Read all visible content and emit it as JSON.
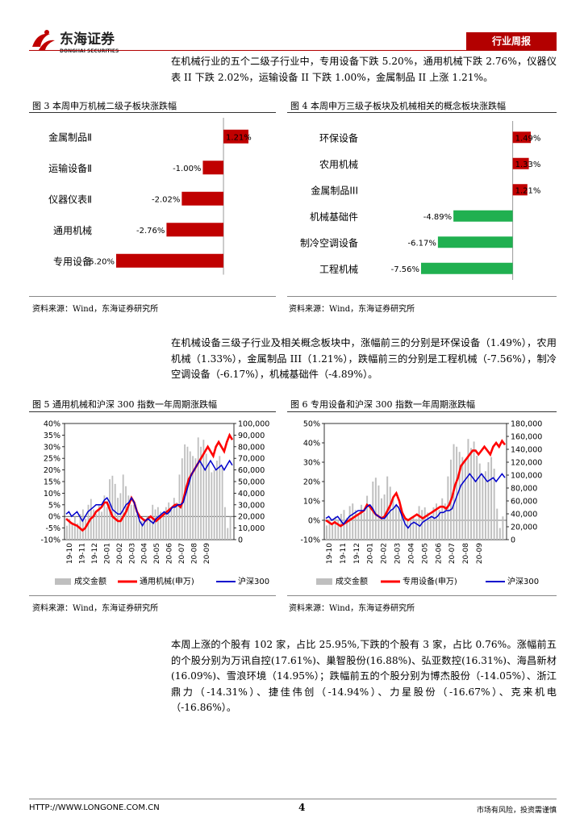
{
  "header": {
    "logo_cn": "东海证券",
    "logo_en": "DONGHAI SECURITIES",
    "badge": "行业周报"
  },
  "para1": "在机械行业的五个二级子行业中，专用设备下跌 5.20%，通用机械下跌 2.76%，仪器仪表 II 下跌 2.02%，运输设备 II 下跌 1.00%，金属制品 II 上涨 1.21%。",
  "fig3": {
    "caption": "图 3   本周申万机械二级子板块涨跌幅",
    "source": "资料来源：Wind，东海证券研究所"
  },
  "fig4": {
    "caption": "图 4   本周申万三级子板块及机械相关的概念板块涨跌幅",
    "source": "资料来源：Wind，东海证券研究所"
  },
  "para2": "在机械设备三级子行业及相关概念板块中，涨幅前三的分别是环保设备（1.49%），农用机械（1.33%），金属制品 III（1.21%），跌幅前三的分别是工程机械（-7.56%），制冷空调设备（-6.17%），机械基础件（-4.89%）。",
  "fig5": {
    "caption": "图 5   通用机械和沪深 300 指数一年周期涨跌幅",
    "source": "资料来源：Wind，东海证券研究所"
  },
  "fig6": {
    "caption": "图 6   专用设备和沪深 300 指数一年周期涨跌幅",
    "source": "资料来源：Wind，东海证券研究所"
  },
  "para3": "本周上涨的个股有 102 家，占比 25.95%,下跌的个股有 3 家，占比 0.76%。涨幅前五的个股分别为万讯自控(17.61%)、巢智股份(16.88%)、弘亚数控(16.31%)、海昌新材(16.09%)、雪浪环境（14.95%）；跌幅前五的个股分别为博杰股份（-14.05%）、浙江鼎力（-14.31%）、捷佳伟创（-14.94%）、力星股份（-16.67%）、克来机电（-16.86%）。",
  "footer": {
    "url": "HTTP://WWW.LONGONE.COM.CN",
    "page": "4",
    "note": "市场有风险，投资需谨慎"
  },
  "chart_data": [
    {
      "type": "bar",
      "orientation": "horizontal",
      "categories": [
        "金属制品Ⅱ",
        "运输设备Ⅱ",
        "仪器仪表Ⅱ",
        "通用机械",
        "专用设备"
      ],
      "values": [
        1.21,
        -1.0,
        -2.02,
        -2.76,
        -5.2
      ],
      "labels": [
        "1.21%",
        "-1.00%",
        "-2.02%",
        "-2.76%",
        "-5.20%"
      ],
      "color": "#c00000"
    },
    {
      "type": "bar",
      "orientation": "horizontal",
      "categories": [
        "环保设备",
        "农用机械",
        "金属制品III",
        "机械基础件",
        "制冷空调设备",
        "工程机械"
      ],
      "values": [
        1.49,
        1.33,
        1.21,
        -4.89,
        -6.17,
        -7.56
      ],
      "labels": [
        "1.49%",
        "1.33%",
        "1.21%",
        "-4.89%",
        "-6.17%",
        "-7.56%"
      ],
      "pos_color": "#c00000",
      "neg_color": "#20b050"
    },
    {
      "type": "line",
      "x_ticks": [
        "19-10",
        "19-11",
        "19-12",
        "20-01",
        "20-02",
        "20-03",
        "20-04",
        "20-05",
        "20-06",
        "20-07",
        "20-08",
        "20-09"
      ],
      "y_left": {
        "ticks": [
          "40%",
          "35%",
          "30%",
          "25%",
          "20%",
          "15%",
          "10%",
          "5%",
          "0%",
          "-5%",
          "-10%"
        ],
        "range": [
          -10,
          40
        ]
      },
      "y_right": {
        "ticks": [
          "100,000",
          "90,000",
          "80,000",
          "70,000",
          "60,000",
          "50,000",
          "40,000",
          "30,000",
          "20,000",
          "10,000",
          "0"
        ],
        "range": [
          0,
          100000
        ]
      },
      "bar_series": {
        "name": "成交金额",
        "color": "#bfbfbf",
        "values": [
          12000,
          18000,
          15000,
          20000,
          14000,
          22000,
          26000,
          18000,
          30000,
          35000,
          26000,
          22000,
          30000,
          24000,
          38000,
          28000,
          52000,
          55000,
          48000,
          36000,
          40000,
          56000,
          46000,
          38000,
          30000,
          30000,
          22000,
          20000,
          16000,
          18000,
          20000,
          18000,
          30000,
          26000,
          28000,
          24000,
          20000,
          28000,
          32000,
          26000,
          36000,
          32000,
          56000,
          70000,
          82000,
          80000,
          76000,
          72000,
          70000,
          88000,
          80000,
          86000,
          74000,
          66000,
          58000,
          60000,
          68000,
          72000,
          62000,
          28000,
          10000,
          20000
        ]
      },
      "series": [
        {
          "name": "通用机械(申万)",
          "color": "#ff0000",
          "values": [
            -1,
            -2,
            -3,
            -3.5,
            -4,
            -5,
            -6,
            -5,
            -3,
            -1,
            0,
            2,
            3,
            4,
            6,
            6,
            3,
            0,
            -1,
            -2,
            -2,
            0,
            2,
            5,
            8,
            6,
            2,
            0,
            -1,
            -2,
            -1,
            0,
            -1,
            -2,
            -1,
            0,
            1,
            2,
            3,
            4,
            5,
            5,
            4,
            7,
            12,
            16,
            18,
            20,
            22,
            24,
            26,
            28,
            30,
            28,
            26,
            30,
            32,
            30,
            28,
            32,
            35,
            33
          ]
        },
        {
          "name": "沪深300",
          "color": "#0000cc",
          "values": [
            1,
            2,
            0,
            1,
            2,
            0,
            -2,
            0,
            2,
            3,
            4,
            5,
            5,
            5,
            7,
            8,
            6,
            3,
            2,
            1,
            1,
            3,
            5,
            6,
            8,
            6,
            2,
            -2,
            -4,
            -2,
            -1,
            -2,
            -3,
            -1,
            0,
            1,
            2,
            1,
            2,
            4,
            4,
            5,
            5,
            6,
            10,
            14,
            18,
            20,
            22,
            24,
            22,
            20,
            22,
            24,
            22,
            20,
            21,
            22,
            20,
            22,
            24,
            22
          ]
        }
      ]
    },
    {
      "type": "line",
      "x_ticks": [
        "19-10",
        "19-11",
        "19-12",
        "20-01",
        "20-02",
        "20-03",
        "20-04",
        "20-05",
        "20-06",
        "20-07",
        "20-08",
        "20-09"
      ],
      "y_left": {
        "ticks": [
          "50%",
          "40%",
          "30%",
          "20%",
          "10%",
          "0%",
          "-10%"
        ],
        "range": [
          -10,
          50
        ]
      },
      "y_right": {
        "ticks": [
          "180,000",
          "160,000",
          "140,000",
          "120,000",
          "100,000",
          "80,000",
          "60,000",
          "40,000",
          "20,000",
          "0"
        ],
        "range": [
          0,
          180000
        ]
      },
      "bar_series": {
        "name": "成交金额",
        "color": "#bfbfbf",
        "values": [
          22000,
          30000,
          26000,
          36000,
          30000,
          40000,
          46000,
          34000,
          52000,
          56000,
          46000,
          40000,
          54000,
          42000,
          68000,
          52000,
          90000,
          96000,
          84000,
          64000,
          70000,
          98000,
          82000,
          66000,
          52000,
          52000,
          40000,
          36000,
          30000,
          34000,
          36000,
          32000,
          52000,
          46000,
          50000,
          42000,
          36000,
          50000,
          56000,
          46000,
          64000,
          56000,
          98000,
          124000,
          148000,
          144000,
          136000,
          128000,
          124000,
          156000,
          142000,
          152000,
          130000,
          118000,
          102000,
          106000,
          120000,
          128000,
          110000,
          48000,
          18000,
          36000
        ]
      },
      "series": [
        {
          "name": "专用设备(申万)",
          "color": "#ff0000",
          "values": [
            0,
            -1,
            -2,
            -1,
            -2,
            -3,
            -2,
            -1,
            0,
            1,
            2,
            3,
            4,
            5,
            8,
            7,
            5,
            3,
            2,
            1,
            2,
            5,
            8,
            12,
            14,
            10,
            4,
            1,
            0,
            1,
            2,
            3,
            2,
            1,
            2,
            3,
            4,
            5,
            6,
            7,
            7,
            6,
            8,
            12,
            18,
            22,
            28,
            30,
            32,
            34,
            36,
            36,
            34,
            36,
            38,
            36,
            34,
            38,
            40,
            38,
            41,
            39
          ]
        },
        {
          "name": "沪深300",
          "color": "#0000cc",
          "values": [
            1,
            2,
            0,
            1,
            2,
            0,
            -2,
            0,
            2,
            3,
            4,
            5,
            5,
            5,
            7,
            8,
            6,
            3,
            2,
            1,
            1,
            3,
            5,
            6,
            8,
            6,
            2,
            -2,
            -4,
            -2,
            -1,
            -2,
            -3,
            -1,
            0,
            1,
            2,
            1,
            2,
            4,
            4,
            5,
            5,
            6,
            10,
            14,
            18,
            20,
            22,
            24,
            22,
            20,
            22,
            24,
            22,
            20,
            21,
            22,
            20,
            22,
            24,
            22
          ]
        }
      ]
    }
  ]
}
